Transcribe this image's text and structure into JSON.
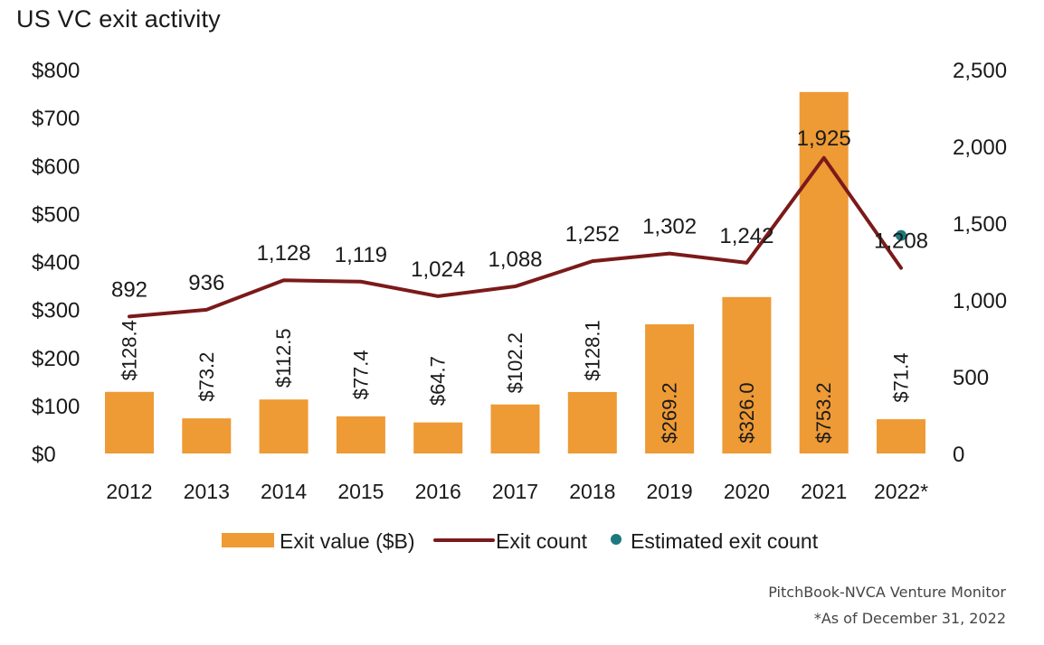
{
  "chart_data": {
    "type": "bar",
    "title": "US VC exit activity",
    "categories": [
      "2012",
      "2013",
      "2014",
      "2015",
      "2016",
      "2017",
      "2018",
      "2019",
      "2020",
      "2021",
      "2022*"
    ],
    "series": [
      {
        "name": "Exit value ($B)",
        "kind": "bar",
        "axis": "left",
        "color": "#EE9A35",
        "values": [
          128.4,
          73.2,
          112.5,
          77.4,
          64.7,
          102.2,
          128.1,
          269.2,
          326.0,
          753.2,
          71.4
        ],
        "labels": [
          "$128.4",
          "$73.2",
          "$112.5",
          "$77.4",
          "$64.7",
          "$102.2",
          "$128.1",
          "$269.2",
          "$326.0",
          "$753.2",
          "$71.4"
        ]
      },
      {
        "name": "Exit count",
        "kind": "line",
        "axis": "right",
        "color": "#7B1A1A",
        "values": [
          892,
          936,
          1128,
          1119,
          1024,
          1088,
          1252,
          1302,
          1242,
          1925,
          1208
        ],
        "labels": [
          "892",
          "936",
          "1,128",
          "1,119",
          "1,024",
          "1,088",
          "1,252",
          "1,302",
          "1,242",
          "1,925",
          "1,208"
        ]
      },
      {
        "name": "Estimated exit count",
        "kind": "point",
        "axis": "right",
        "color": "#1C7A7F",
        "values": [
          null,
          null,
          null,
          null,
          null,
          null,
          null,
          null,
          null,
          null,
          1420
        ]
      }
    ],
    "y_left": {
      "min": 0,
      "max": 800,
      "ticks": [
        0,
        100,
        200,
        300,
        400,
        500,
        600,
        700,
        800
      ],
      "tick_labels": [
        "$0",
        "$100",
        "$200",
        "$300",
        "$400",
        "$500",
        "$600",
        "$700",
        "$800"
      ]
    },
    "y_right": {
      "min": 0,
      "max": 2500,
      "ticks": [
        0,
        500,
        1000,
        1500,
        2000,
        2500
      ],
      "tick_labels": [
        "0",
        "500",
        "1,000",
        "1,500",
        "2,000",
        "2,500"
      ]
    },
    "grid": false,
    "legend_position": "bottom"
  },
  "source": "PitchBook-NVCA Venture Monitor",
  "footnote": "*As of December 31, 2022"
}
